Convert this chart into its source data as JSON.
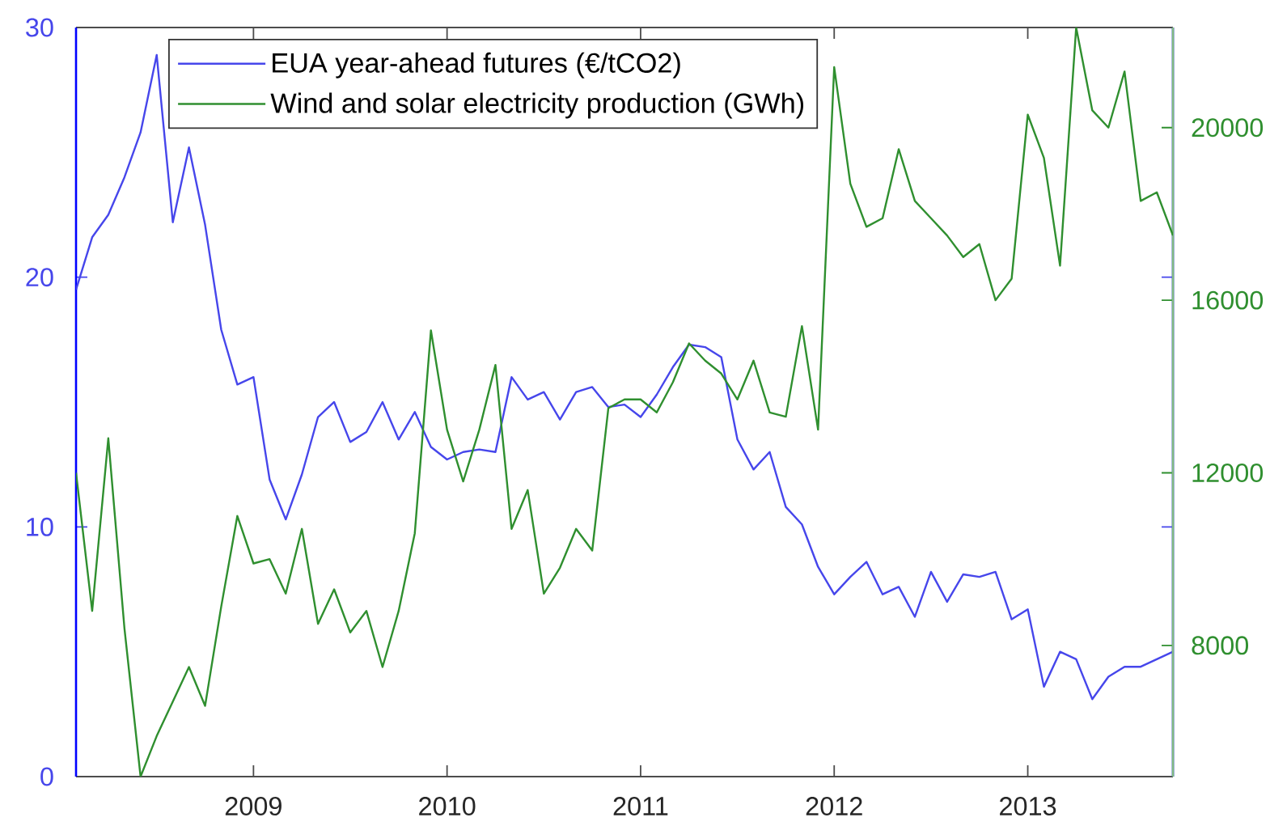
{
  "chart_data": {
    "type": "line",
    "x": [
      "2008-02",
      "2008-03",
      "2008-04",
      "2008-05",
      "2008-06",
      "2008-07",
      "2008-08",
      "2008-09",
      "2008-10",
      "2008-11",
      "2008-12",
      "2009-01",
      "2009-02",
      "2009-03",
      "2009-04",
      "2009-05",
      "2009-06",
      "2009-07",
      "2009-08",
      "2009-09",
      "2009-10",
      "2009-11",
      "2009-12",
      "2010-01",
      "2010-02",
      "2010-03",
      "2010-04",
      "2010-05",
      "2010-06",
      "2010-07",
      "2010-08",
      "2010-09",
      "2010-10",
      "2010-11",
      "2010-12",
      "2011-01",
      "2011-02",
      "2011-03",
      "2011-04",
      "2011-05",
      "2011-06",
      "2011-07",
      "2011-08",
      "2011-09",
      "2011-10",
      "2011-11",
      "2011-12",
      "2012-01",
      "2012-02",
      "2012-03",
      "2012-04",
      "2012-05",
      "2012-06",
      "2012-07",
      "2012-08",
      "2012-09",
      "2012-10",
      "2012-11",
      "2012-12",
      "2013-01",
      "2013-02",
      "2013-03",
      "2013-04",
      "2013-05",
      "2013-06",
      "2013-07",
      "2013-08",
      "2013-09",
      "2013-10"
    ],
    "xlim": [
      "2008-02",
      "2013-10"
    ],
    "xticks": [
      "2009",
      "2010",
      "2011",
      "2012",
      "2013"
    ],
    "ylim": [
      0,
      30
    ],
    "yticks": [
      0,
      10,
      20,
      30
    ],
    "y2lim": [
      4960,
      22320
    ],
    "y2ticks": [
      8000,
      12000,
      16000,
      20000
    ],
    "series": [
      {
        "name": "EUA year-ahead futures (€/tCO2)",
        "color": "#4646eb",
        "values": [
          19.5,
          21.6,
          22.5,
          24.0,
          25.8,
          28.9,
          22.2,
          25.2,
          22.1,
          17.9,
          15.7,
          16.0,
          11.9,
          10.3,
          12.1,
          14.4,
          15.0,
          13.4,
          13.8,
          15.0,
          13.5,
          14.6,
          13.2,
          12.7,
          13.0,
          13.1,
          13.0,
          16.0,
          15.1,
          15.4,
          14.3,
          15.4,
          15.6,
          14.8,
          14.9,
          14.4,
          15.3,
          16.4,
          17.3,
          17.2,
          16.8,
          13.5,
          12.3,
          13.0,
          10.8,
          10.1,
          8.4,
          7.3,
          8.0,
          8.6,
          7.3,
          7.6,
          6.4,
          8.2,
          7.0,
          8.1,
          8.0,
          8.2,
          6.3,
          6.7,
          3.6,
          5.0,
          4.7,
          3.1,
          4.0,
          4.4,
          4.4,
          4.7,
          5.0
        ]
      },
      {
        "name": "Wind and solar electricity production (GWh)",
        "color": "#2f8f2f",
        "axis": "y2",
        "values": [
          12000,
          8800,
          12800,
          8400,
          4960,
          5900,
          6700,
          7500,
          6600,
          8900,
          11000,
          9900,
          10000,
          9200,
          10700,
          8500,
          9300,
          8300,
          8800,
          7500,
          8800,
          10600,
          15300,
          13000,
          11800,
          13000,
          14500,
          10700,
          11600,
          9200,
          9800,
          10700,
          10200,
          13500,
          13700,
          13700,
          13400,
          14100,
          15000,
          14600,
          14300,
          13700,
          14600,
          13400,
          13300,
          15400,
          13000,
          21400,
          18700,
          17700,
          17900,
          19500,
          18300,
          17900,
          17500,
          17000,
          17300,
          16000,
          16500,
          20300,
          19300,
          16800,
          22320,
          20400,
          20000,
          21300,
          18300,
          18500,
          17500
        ]
      }
    ],
    "legend": "top left"
  }
}
